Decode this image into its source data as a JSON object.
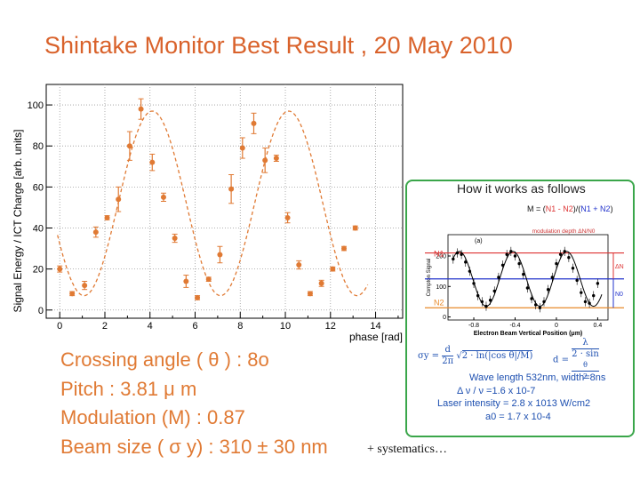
{
  "title": "Shintake Monitor Best Result , 20 May 2010",
  "params": {
    "crossing": "Crossing angle ( θ ) : 8o",
    "pitch": "Pitch : 3.81 μ m",
    "modulation": "Modulation (M) : 0.87",
    "beamsize": "Beam size ( σ y) : 310 ± 30 nm"
  },
  "systematics": "+ systematics…",
  "colors": {
    "accent": "#e07a34",
    "title": "#d9622b",
    "inset_border": "#3aa64a",
    "blue_text": "#1d4fb0"
  },
  "chart_data": [
    {
      "type": "scatter",
      "title": "",
      "xlabel": "phase [rad]",
      "ylabel": "Signal Energy / ICT Charge [arb. units]",
      "xlim": [
        -0.6,
        15.2
      ],
      "ylim": [
        -4,
        110
      ],
      "xticks": [
        0,
        2,
        4,
        6,
        8,
        10,
        12,
        14
      ],
      "yticks": [
        0,
        20,
        40,
        60,
        80,
        100
      ],
      "grid": true,
      "series": [
        {
          "name": "data",
          "x": [
            0,
            0.55,
            1.1,
            1.6,
            2.1,
            2.6,
            3.1,
            3.6,
            4.1,
            4.6,
            5.1,
            5.6,
            6.1,
            6.6,
            7.1,
            7.6,
            8.1,
            8.6,
            9.1,
            9.6,
            10.1,
            10.6,
            11.1,
            11.6,
            12.1,
            12.6,
            13.1
          ],
          "y": [
            20,
            8,
            12,
            38,
            45,
            54,
            80,
            98,
            72,
            55,
            35,
            14,
            6,
            15,
            27,
            59,
            79,
            91,
            73,
            74,
            45,
            22,
            8,
            13,
            20,
            30,
            40
          ],
          "err": [
            1.5,
            1,
            2,
            2.5,
            1,
            6,
            7,
            5,
            4,
            2,
            2,
            3,
            1,
            1,
            4,
            7,
            5,
            5,
            6,
            1.5,
            2.5,
            2,
            1,
            1.5,
            1,
            1,
            1
          ]
        },
        {
          "name": "fit",
          "style": "dashed",
          "model": "sinusoid",
          "mean": 52,
          "amplitude": 45,
          "period": 6.05,
          "peak_phase": 4.1
        }
      ]
    },
    {
      "type": "scatter",
      "title": "modulation depth  ΔN/N0",
      "xlabel": "Electron Beam Vertical Position (μm)",
      "ylabel": "Compton Signal",
      "panel_label": "(a)",
      "xlim": [
        -1.05,
        0.5
      ],
      "ylim": [
        -10,
        270
      ],
      "xticks": [
        -0.8,
        -0.4,
        0,
        0.4
      ],
      "yticks": [
        0,
        100,
        200
      ],
      "levels": [
        {
          "name": "N1",
          "value": 210,
          "color": "#d33"
        },
        {
          "name": "N0",
          "value": 125,
          "color": "#23c"
        },
        {
          "name": "N2",
          "value": 30,
          "color": "#e88a2a"
        }
      ],
      "delta_labels": [
        "ΔN",
        "N0"
      ],
      "series": [
        {
          "name": "data",
          "x": [
            -1.0,
            -0.96,
            -0.92,
            -0.88,
            -0.84,
            -0.8,
            -0.76,
            -0.72,
            -0.68,
            -0.64,
            -0.6,
            -0.56,
            -0.52,
            -0.48,
            -0.44,
            -0.4,
            -0.36,
            -0.32,
            -0.28,
            -0.24,
            -0.2,
            -0.16,
            -0.12,
            -0.08,
            -0.04,
            0,
            0.04,
            0.08,
            0.12,
            0.16,
            0.2,
            0.24,
            0.28,
            0.32,
            0.36,
            0.4
          ],
          "y": [
            190,
            210,
            205,
            180,
            150,
            110,
            70,
            50,
            35,
            55,
            85,
            130,
            170,
            205,
            215,
            200,
            175,
            140,
            95,
            60,
            40,
            30,
            50,
            90,
            130,
            175,
            205,
            215,
            195,
            160,
            120,
            80,
            50,
            45,
            70,
            110
          ]
        }
      ]
    }
  ],
  "inset": {
    "title": "How it works as follows",
    "formula_m": "M = (N1 - N2)/(N1 + N2)",
    "formula_m_parts": [
      "M = (",
      "N1 - N2",
      ")/(",
      "N1 + N2",
      ")"
    ],
    "sigma_lhs": "σy =",
    "sigma_num": "d",
    "sigma_den": "2π",
    "sigma_sqrt": "2 · ln(|cos θ|/M)",
    "d_lhs": "d =",
    "d_num": "λ",
    "d_den_pre": "2 · sin",
    "d_theta_num": "θ",
    "d_theta_den": "2",
    "spec_wavelength": "Wave length 532nm, width=8ns",
    "spec_freq": "Δ ν / ν =1.6 x 10-7",
    "spec_laser": "Laser intensity = 2.8 x 1013 W/cm2",
    "spec_a0": "a0 = 1.7 x 10-4"
  }
}
